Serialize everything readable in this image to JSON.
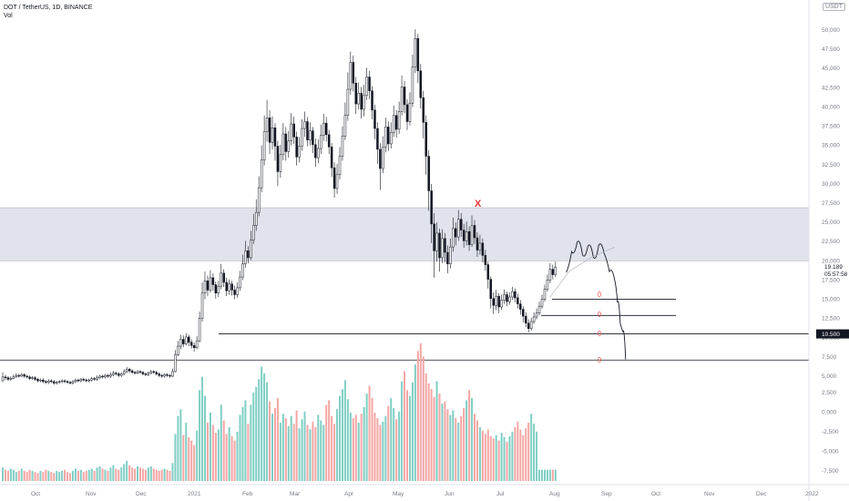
{
  "header": {
    "symbol_line": "DOT / TetherUS, 1D, BINANCE",
    "indicator": "Vol",
    "currency_toggle": "USDT"
  },
  "chart_data": {
    "type": "candlestick",
    "price_axis": {
      "ticks": [
        "50,000",
        "47,500",
        "45,000",
        "42,500",
        "40,000",
        "37,500",
        "35,000",
        "32,500",
        "30,000",
        "27,500",
        "25,000",
        "22,500",
        "20,000",
        "17,500",
        "15,000",
        "12,500",
        "10,000",
        "7,500",
        "5,000",
        "2,500",
        "0,000",
        "-2,500",
        "-5,000",
        "-7,500"
      ],
      "tick_values": [
        50,
        47.5,
        45,
        42.5,
        40,
        37.5,
        35,
        32.5,
        30,
        27.5,
        25,
        22.5,
        20,
        17.5,
        15,
        12.5,
        10,
        7.5,
        5,
        2.5,
        0,
        -2.5,
        -5,
        -7.5
      ],
      "last_price": "19.189",
      "countdown": "05:57:58",
      "level_label": "10.500"
    },
    "x_axis": {
      "ticks": [
        "Oct",
        "Nov",
        "Dec",
        "2021",
        "Feb",
        "Mar",
        "Apr",
        "May",
        "Jun",
        "Jul",
        "Aug",
        "Sep",
        "Oct",
        "Nov",
        "Dec",
        "2022"
      ]
    },
    "resistance_zone": [
      20.0,
      26.9
    ],
    "horizontal_levels": [
      15.0,
      12.9,
      10.5,
      7.1
    ],
    "candles": [
      [
        4.4,
        4.9,
        5.5,
        4.3
      ],
      [
        4.9,
        4.8,
        5.2,
        4.5
      ],
      [
        4.8,
        4.6,
        5.0,
        4.4
      ],
      [
        4.6,
        4.7,
        5.0,
        4.4
      ],
      [
        4.7,
        4.9,
        5.2,
        4.6
      ],
      [
        4.9,
        5.1,
        5.4,
        4.8
      ],
      [
        5.1,
        5.0,
        5.3,
        4.8
      ],
      [
        5.0,
        5.2,
        5.4,
        4.9
      ],
      [
        5.2,
        5.0,
        5.4,
        4.8
      ],
      [
        5.0,
        4.9,
        5.2,
        4.7
      ],
      [
        4.9,
        4.7,
        5.1,
        4.5
      ],
      [
        4.7,
        4.8,
        5.0,
        4.5
      ],
      [
        4.8,
        4.6,
        5.0,
        4.4
      ],
      [
        4.6,
        4.4,
        4.8,
        4.2
      ],
      [
        4.4,
        4.5,
        4.7,
        4.2
      ],
      [
        4.5,
        4.3,
        4.7,
        4.1
      ],
      [
        4.3,
        4.2,
        4.5,
        4.0
      ],
      [
        4.2,
        4.4,
        4.6,
        4.0
      ],
      [
        4.4,
        4.3,
        4.6,
        4.1
      ],
      [
        4.3,
        4.1,
        4.5,
        3.9
      ],
      [
        4.1,
        4.2,
        4.4,
        3.9
      ],
      [
        4.2,
        4.3,
        4.5,
        4.0
      ],
      [
        4.3,
        4.4,
        4.6,
        4.1
      ],
      [
        4.4,
        4.3,
        4.6,
        4.1
      ],
      [
        4.3,
        4.2,
        4.5,
        4.0
      ],
      [
        4.2,
        4.1,
        4.4,
        3.9
      ],
      [
        4.1,
        4.3,
        4.5,
        3.9
      ],
      [
        4.3,
        4.5,
        4.7,
        4.1
      ],
      [
        4.5,
        4.4,
        4.7,
        4.2
      ],
      [
        4.4,
        4.6,
        4.8,
        4.2
      ],
      [
        4.6,
        4.5,
        4.8,
        4.3
      ],
      [
        4.5,
        4.4,
        4.7,
        4.2
      ],
      [
        4.4,
        4.5,
        4.7,
        4.2
      ],
      [
        4.5,
        4.7,
        4.9,
        4.3
      ],
      [
        4.7,
        4.6,
        4.9,
        4.4
      ],
      [
        4.6,
        4.8,
        5.1,
        4.4
      ],
      [
        4.8,
        5.0,
        5.2,
        4.6
      ],
      [
        5.0,
        4.9,
        5.2,
        4.7
      ],
      [
        4.9,
        5.1,
        5.3,
        4.7
      ],
      [
        5.1,
        5.0,
        5.3,
        4.8
      ],
      [
        5.0,
        5.2,
        5.5,
        4.8
      ],
      [
        5.2,
        5.4,
        5.7,
        5.0
      ],
      [
        5.4,
        5.3,
        5.6,
        5.1
      ],
      [
        5.3,
        5.1,
        5.5,
        4.9
      ],
      [
        5.1,
        5.3,
        5.5,
        4.9
      ],
      [
        5.3,
        5.6,
        5.9,
        5.1
      ],
      [
        5.6,
        5.9,
        6.2,
        5.4
      ],
      [
        5.9,
        5.7,
        6.1,
        5.4
      ],
      [
        5.7,
        5.5,
        5.9,
        5.3
      ],
      [
        5.5,
        5.4,
        5.7,
        5.2
      ],
      [
        5.4,
        5.6,
        5.8,
        5.2
      ],
      [
        5.6,
        5.5,
        5.8,
        5.3
      ],
      [
        5.5,
        5.3,
        5.7,
        5.1
      ],
      [
        5.3,
        5.2,
        5.5,
        5.0
      ],
      [
        5.2,
        5.4,
        5.6,
        5.0
      ],
      [
        5.4,
        5.6,
        5.8,
        5.2
      ],
      [
        5.6,
        5.5,
        5.8,
        5.3
      ],
      [
        5.5,
        5.3,
        5.7,
        5.1
      ],
      [
        5.3,
        5.1,
        5.5,
        4.9
      ],
      [
        5.1,
        5.0,
        5.3,
        4.8
      ],
      [
        5.0,
        5.2,
        5.4,
        4.8
      ],
      [
        5.2,
        5.1,
        5.4,
        4.9
      ],
      [
        5.1,
        5.0,
        5.3,
        4.8
      ],
      [
        5.0,
        5.6,
        6.0,
        4.9
      ],
      [
        5.6,
        7.8,
        8.4,
        5.5
      ],
      [
        7.8,
        8.9,
        9.6,
        7.6
      ],
      [
        8.9,
        9.8,
        10.4,
        8.5
      ],
      [
        9.8,
        9.2,
        10.3,
        8.8
      ],
      [
        9.2,
        10.1,
        10.6,
        9.0
      ],
      [
        10.1,
        9.4,
        10.4,
        8.9
      ],
      [
        9.4,
        9.0,
        9.8,
        8.6
      ],
      [
        9.0,
        8.7,
        9.4,
        8.2
      ],
      [
        8.7,
        9.6,
        10.2,
        8.5
      ],
      [
        9.6,
        12.5,
        13.4,
        9.4
      ],
      [
        12.5,
        15.8,
        17.2,
        12.1
      ],
      [
        15.8,
        17.4,
        18.6,
        15.0
      ],
      [
        17.4,
        16.2,
        18.1,
        15.4
      ],
      [
        16.2,
        17.8,
        18.8,
        15.9
      ],
      [
        17.8,
        16.9,
        18.4,
        16.1
      ],
      [
        16.9,
        15.8,
        17.3,
        15.1
      ],
      [
        15.8,
        16.7,
        17.4,
        15.3
      ],
      [
        16.7,
        18.4,
        19.6,
        16.3
      ],
      [
        18.4,
        17.2,
        18.9,
        16.6
      ],
      [
        17.2,
        16.1,
        17.8,
        15.4
      ],
      [
        16.1,
        17.0,
        17.6,
        15.6
      ],
      [
        17.0,
        16.2,
        17.4,
        15.5
      ],
      [
        16.2,
        15.6,
        16.8,
        15.0
      ],
      [
        15.6,
        16.5,
        17.2,
        15.2
      ],
      [
        16.5,
        17.9,
        18.7,
        16.1
      ],
      [
        17.9,
        19.6,
        20.8,
        17.5
      ],
      [
        19.6,
        21.3,
        22.6,
        19.1
      ],
      [
        21.3,
        20.4,
        21.9,
        19.7
      ],
      [
        20.4,
        22.7,
        23.9,
        20.1
      ],
      [
        22.7,
        24.6,
        26.1,
        22.2
      ],
      [
        24.6,
        26.3,
        28.0,
        23.9
      ],
      [
        26.3,
        29.5,
        31.0,
        25.8
      ],
      [
        29.5,
        33.1,
        35.0,
        28.9
      ],
      [
        33.1,
        36.8,
        38.9,
        32.4
      ],
      [
        36.8,
        38.6,
        40.9,
        35.5
      ],
      [
        38.6,
        35.4,
        39.6,
        33.9
      ],
      [
        35.4,
        37.3,
        38.8,
        34.5
      ],
      [
        37.3,
        34.9,
        37.9,
        33.0
      ],
      [
        34.9,
        31.6,
        35.6,
        29.7
      ],
      [
        31.6,
        33.8,
        35.1,
        30.8
      ],
      [
        33.8,
        36.5,
        37.9,
        33.1
      ],
      [
        36.5,
        34.2,
        37.4,
        33.0
      ],
      [
        34.2,
        35.6,
        36.9,
        33.4
      ],
      [
        35.6,
        37.8,
        39.2,
        35.0
      ],
      [
        37.8,
        36.1,
        38.7,
        35.2
      ],
      [
        36.1,
        33.5,
        36.8,
        32.4
      ],
      [
        33.5,
        34.9,
        36.1,
        32.8
      ],
      [
        34.9,
        37.2,
        38.4,
        34.3
      ],
      [
        37.2,
        38.1,
        39.4,
        36.1
      ],
      [
        38.1,
        35.7,
        38.7,
        34.9
      ],
      [
        35.7,
        36.9,
        38.0,
        35.0
      ],
      [
        36.9,
        35.1,
        37.4,
        34.0
      ],
      [
        35.1,
        33.4,
        35.9,
        32.2
      ],
      [
        33.4,
        34.6,
        35.8,
        32.7
      ],
      [
        34.6,
        36.3,
        37.7,
        33.9
      ],
      [
        36.3,
        37.9,
        39.1,
        35.6
      ],
      [
        37.9,
        36.4,
        38.7,
        35.5
      ],
      [
        36.4,
        34.8,
        37.0,
        33.9
      ],
      [
        34.8,
        32.1,
        35.3,
        30.9
      ],
      [
        32.1,
        29.4,
        32.8,
        28.2
      ],
      [
        29.4,
        31.2,
        32.6,
        28.7
      ],
      [
        31.2,
        33.6,
        34.8,
        30.6
      ],
      [
        33.6,
        36.2,
        37.5,
        33.0
      ],
      [
        36.2,
        38.9,
        40.6,
        35.7
      ],
      [
        38.9,
        42.3,
        44.5,
        38.2
      ],
      [
        42.3,
        45.8,
        47.2,
        41.6
      ],
      [
        45.8,
        43.1,
        46.7,
        42.0
      ],
      [
        43.1,
        40.4,
        43.9,
        39.1
      ],
      [
        40.4,
        41.8,
        43.2,
        39.7
      ],
      [
        41.8,
        39.7,
        42.6,
        38.5
      ],
      [
        39.7,
        41.5,
        42.9,
        38.8
      ],
      [
        41.5,
        43.9,
        45.1,
        40.9
      ],
      [
        43.9,
        42.1,
        44.7,
        41.0
      ],
      [
        42.1,
        39.6,
        42.7,
        38.4
      ],
      [
        39.6,
        37.2,
        40.3,
        35.8
      ],
      [
        37.2,
        34.5,
        38.0,
        32.6
      ],
      [
        34.5,
        32.0,
        35.3,
        29.2
      ],
      [
        32.0,
        34.8,
        36.2,
        31.4
      ],
      [
        34.8,
        37.4,
        38.6,
        34.1
      ],
      [
        37.4,
        35.2,
        38.1,
        34.3
      ],
      [
        35.2,
        36.7,
        38.0,
        34.6
      ],
      [
        36.7,
        38.9,
        40.2,
        36.1
      ],
      [
        38.9,
        37.1,
        39.6,
        36.0
      ],
      [
        37.1,
        39.4,
        40.7,
        36.5
      ],
      [
        39.4,
        42.6,
        44.1,
        38.9
      ],
      [
        42.6,
        40.3,
        43.4,
        39.2
      ],
      [
        40.3,
        38.1,
        41.0,
        37.0
      ],
      [
        38.1,
        40.5,
        41.9,
        37.6
      ],
      [
        40.5,
        45.2,
        46.8,
        40.0
      ],
      [
        45.2,
        48.9,
        50.1,
        44.4
      ],
      [
        48.9,
        44.7,
        49.5,
        43.1
      ],
      [
        44.7,
        41.2,
        45.6,
        39.8
      ],
      [
        41.2,
        38.0,
        42.1,
        35.9
      ],
      [
        38.0,
        33.6,
        38.9,
        31.2
      ],
      [
        33.6,
        29.1,
        34.4,
        26.5
      ],
      [
        29.1,
        24.8,
        30.0,
        22.3
      ],
      [
        24.8,
        21.3,
        26.2,
        17.8
      ],
      [
        21.3,
        23.6,
        25.0,
        19.9
      ],
      [
        23.6,
        20.4,
        24.2,
        18.6
      ],
      [
        20.4,
        22.9,
        24.1,
        19.7
      ],
      [
        22.9,
        21.1,
        23.6,
        19.8
      ],
      [
        21.1,
        19.6,
        22.0,
        18.4
      ],
      [
        19.6,
        21.8,
        22.9,
        19.0
      ],
      [
        21.8,
        24.2,
        25.6,
        21.2
      ],
      [
        24.2,
        23.1,
        25.0,
        22.0
      ],
      [
        23.1,
        25.4,
        26.6,
        22.6
      ],
      [
        25.4,
        24.0,
        26.2,
        23.1
      ],
      [
        24.0,
        22.6,
        24.8,
        21.7
      ],
      [
        22.6,
        23.8,
        25.1,
        22.0
      ],
      [
        23.8,
        22.1,
        24.5,
        21.3
      ],
      [
        22.1,
        24.6,
        25.9,
        21.8
      ],
      [
        24.6,
        23.0,
        25.3,
        22.2
      ],
      [
        23.0,
        21.4,
        23.7,
        20.5
      ],
      [
        21.4,
        22.3,
        23.4,
        20.8
      ],
      [
        22.3,
        20.7,
        22.9,
        19.8
      ],
      [
        20.7,
        19.5,
        21.4,
        18.7
      ],
      [
        19.5,
        17.6,
        19.9,
        16.4
      ],
      [
        17.6,
        15.1,
        18.0,
        13.8
      ],
      [
        15.1,
        14.2,
        15.9,
        13.1
      ],
      [
        14.2,
        15.4,
        16.2,
        13.6
      ],
      [
        15.4,
        14.0,
        15.8,
        13.2
      ],
      [
        14.0,
        14.9,
        15.6,
        13.6
      ],
      [
        14.9,
        15.6,
        16.3,
        14.4
      ],
      [
        15.6,
        14.7,
        16.0,
        14.1
      ],
      [
        14.7,
        15.3,
        15.9,
        14.3
      ],
      [
        15.3,
        16.0,
        16.6,
        14.9
      ],
      [
        16.0,
        15.2,
        16.4,
        14.6
      ],
      [
        15.2,
        14.4,
        15.7,
        13.8
      ],
      [
        14.4,
        13.7,
        14.9,
        13.0
      ],
      [
        13.7,
        12.8,
        14.1,
        12.0
      ],
      [
        12.8,
        11.9,
        13.3,
        11.4
      ],
      [
        11.9,
        11.2,
        12.4,
        10.7
      ],
      [
        11.2,
        12.1,
        12.6,
        10.9
      ],
      [
        12.1,
        12.7,
        13.3,
        11.8
      ],
      [
        12.7,
        13.2,
        13.8,
        12.4
      ],
      [
        13.2,
        14.1,
        14.7,
        12.9
      ],
      [
        14.1,
        15.0,
        15.6,
        13.8
      ],
      [
        15.0,
        16.3,
        16.9,
        14.7
      ],
      [
        16.3,
        17.5,
        18.2,
        16.0
      ],
      [
        17.5,
        18.9,
        19.7,
        17.1
      ],
      [
        18.9,
        18.2,
        19.5,
        17.6
      ],
      [
        18.2,
        19.19,
        19.9,
        17.9
      ]
    ],
    "volume": [
      1.2,
      1.0,
      0.9,
      1.1,
      1.0,
      0.8,
      0.9,
      1.1,
      0.9,
      0.8,
      1.0,
      0.9,
      0.8,
      0.7,
      0.9,
      0.8,
      1.0,
      0.9,
      0.8,
      0.7,
      0.9,
      0.8,
      0.9,
      1.0,
      0.8,
      0.7,
      0.9,
      1.1,
      0.9,
      1.0,
      0.8,
      0.9,
      1.0,
      1.1,
      0.9,
      1.2,
      1.3,
      1.1,
      1.0,
      0.9,
      1.2,
      1.4,
      1.1,
      1.0,
      1.2,
      1.5,
      1.8,
      1.4,
      1.2,
      1.1,
      1.3,
      1.2,
      1.1,
      1.0,
      1.2,
      1.3,
      1.1,
      1.0,
      0.9,
      1.0,
      1.1,
      1.0,
      0.9,
      1.6,
      4.2,
      5.8,
      6.4,
      4.1,
      5.2,
      3.9,
      3.6,
      3.2,
      4.5,
      8.1,
      9.3,
      7.6,
      5.2,
      6.1,
      5.0,
      4.3,
      4.6,
      6.8,
      5.4,
      4.2,
      4.8,
      4.0,
      3.6,
      4.4,
      5.9,
      6.6,
      7.2,
      5.1,
      6.8,
      7.9,
      8.4,
      9.1,
      10.2,
      9.6,
      8.8,
      7.1,
      6.0,
      6.5,
      7.4,
      5.2,
      6.0,
      5.6,
      4.9,
      5.8,
      5.1,
      6.3,
      4.7,
      5.5,
      6.2,
      5.0,
      4.6,
      5.3,
      4.8,
      5.9,
      5.4,
      5.0,
      6.8,
      7.2,
      5.8,
      5.1,
      6.4,
      7.6,
      8.2,
      9.0,
      7.3,
      6.1,
      5.6,
      5.9,
      5.2,
      6.0,
      6.6,
      7.8,
      8.5,
      7.4,
      6.1,
      5.6,
      5.0,
      5.3,
      5.8,
      6.7,
      7.4,
      6.5,
      5.5,
      6.2,
      8.9,
      9.8,
      8.1,
      7.6,
      8.8,
      10.4,
      11.6,
      12.3,
      11.1,
      9.6,
      8.7,
      8.2,
      7.5,
      8.9,
      7.8,
      6.9,
      7.1,
      6.4,
      5.9,
      6.3,
      5.6,
      5.2,
      5.8,
      6.5,
      7.2,
      8.1,
      7.4,
      6.0,
      5.4,
      4.8,
      4.5,
      4.2,
      4.6,
      4.0,
      3.8,
      4.1,
      3.6,
      4.3,
      3.9,
      3.5,
      4.0,
      4.4,
      4.8,
      5.3,
      4.6,
      4.1,
      4.7,
      5.2,
      6.0,
      5.1,
      4.4
    ],
    "projection_path": [
      [
        209,
        18.5
      ],
      [
        211,
        21.2
      ],
      [
        213,
        22.4
      ],
      [
        215,
        20.8
      ],
      [
        217,
        21.9
      ],
      [
        219,
        20.5
      ],
      [
        221,
        22.0
      ],
      [
        223,
        21.0
      ],
      [
        225,
        18.6
      ],
      [
        227,
        17.4
      ],
      [
        228,
        14.6
      ],
      [
        229,
        11.9
      ],
      [
        230,
        10.8
      ],
      [
        231,
        7.2
      ]
    ],
    "projection_trend": [
      [
        203,
        15.3
      ],
      [
        210,
        18.6
      ],
      [
        218,
        20.4
      ],
      [
        227,
        21.8
      ]
    ],
    "x_mark_candle": 176
  },
  "colors": {
    "up": "#26a69a",
    "down": "#ef5350",
    "zone": "#e0e3eb",
    "x_mark": "#e53935",
    "line": "#131722"
  }
}
